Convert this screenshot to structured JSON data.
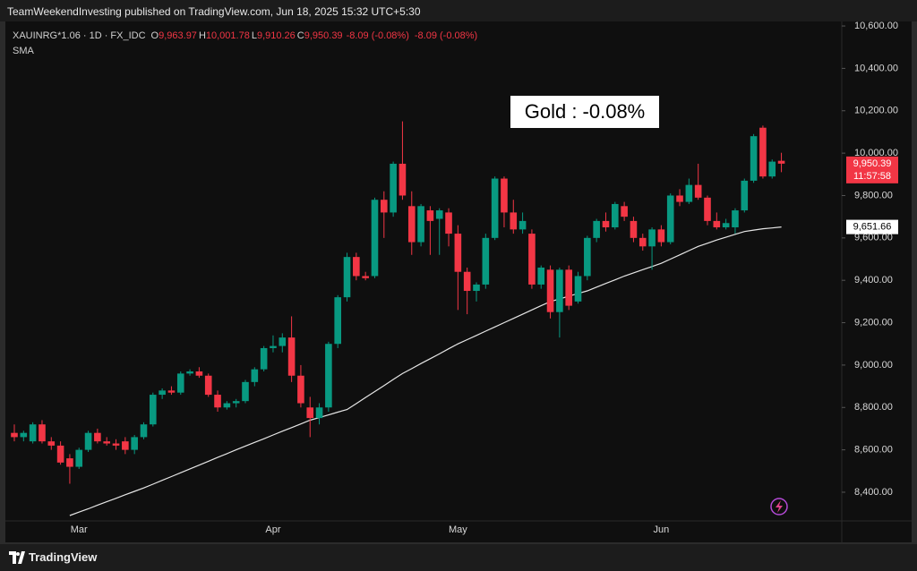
{
  "header": {
    "publisher": "TeamWeekendInvesting published on TradingView.com, Jun 18, 2025 15:32 UTC+5:30"
  },
  "legend": {
    "symbol": "XAUINRG*1.06 · 1D · FX_IDC",
    "items": [
      {
        "key": "O",
        "value": "9,963.97"
      },
      {
        "key": "H",
        "value": "10,001.78"
      },
      {
        "key": "L",
        "value": "9,910.26"
      },
      {
        "key": "C",
        "value": "9,950.39"
      }
    ],
    "change": "-8.09 (-0.08%)",
    "change_repeat": "-8.09 (-0.08%)"
  },
  "footer": {
    "brand": "TradingView"
  },
  "chart_data": {
    "type": "candlestick",
    "annotation": "Gold : -0.08%",
    "up_color": "#089981",
    "down_color": "#f23645",
    "categories": [
      null,
      null,
      null,
      null,
      null,
      null,
      null,
      "Mar",
      null,
      null,
      null,
      null,
      null,
      null,
      null,
      null,
      null,
      null,
      null,
      null,
      null,
      null,
      null,
      null,
      null,
      null,
      null,
      null,
      "Apr",
      null,
      null,
      null,
      null,
      null,
      null,
      null,
      null,
      null,
      null,
      null,
      null,
      null,
      null,
      null,
      null,
      null,
      null,
      null,
      "May",
      null,
      null,
      null,
      null,
      null,
      null,
      null,
      null,
      null,
      null,
      null,
      null,
      null,
      null,
      null,
      null,
      null,
      null,
      null,
      null,
      null,
      "Jun",
      null,
      null,
      null,
      null,
      null,
      null,
      null,
      null,
      null,
      null,
      null,
      null,
      null
    ],
    "open": [
      8680,
      8660,
      8640,
      8720,
      8640,
      8620,
      8560,
      8520,
      8600,
      8680,
      8640,
      8630,
      8640,
      8600,
      8660,
      8720,
      8860,
      8880,
      8870,
      8960,
      8970,
      8950,
      8860,
      8800,
      8820,
      8830,
      8920,
      8980,
      9080,
      9090,
      9130,
      8950,
      8800,
      8750,
      8800,
      9100,
      9320,
      9510,
      9420,
      9420,
      9780,
      9720,
      9950,
      9750,
      9580,
      9730,
      9690,
      9720,
      9620,
      9440,
      9350,
      9380,
      9600,
      9880,
      9720,
      9640,
      9620,
      9380,
      9450,
      9250,
      9450,
      9300,
      9420,
      9600,
      9680,
      9650,
      9750,
      9680,
      9600,
      9560,
      9640,
      9580,
      9800,
      9770,
      9850,
      9790,
      9680,
      9650,
      9650,
      9730,
      9870,
      10120,
      9890,
      9963.97
    ],
    "high": [
      8720,
      8690,
      8730,
      8740,
      8660,
      8640,
      8580,
      8610,
      8690,
      8700,
      8660,
      8650,
      8660,
      8670,
      8730,
      8870,
      8890,
      8900,
      8970,
      8980,
      8990,
      8960,
      8880,
      8830,
      8840,
      8930,
      8990,
      9090,
      9140,
      9150,
      9230,
      9000,
      8850,
      8820,
      9110,
      9330,
      9530,
      9530,
      9440,
      9790,
      9820,
      9960,
      10150,
      9820,
      9760,
      9750,
      9740,
      9740,
      9660,
      9460,
      9390,
      9620,
      9890,
      9890,
      9780,
      9720,
      9640,
      9470,
      9470,
      9460,
      9470,
      9440,
      9610,
      9690,
      9720,
      9770,
      9770,
      9700,
      9620,
      9650,
      9660,
      9810,
      9830,
      9880,
      9950,
      9800,
      9720,
      9690,
      9740,
      9880,
      10090,
      10130,
      9970,
      10001.78
    ],
    "low": [
      8640,
      8640,
      8630,
      8630,
      8600,
      8530,
      8440,
      8510,
      8590,
      8630,
      8620,
      8600,
      8580,
      8580,
      8650,
      8710,
      8840,
      8860,
      8860,
      8950,
      8940,
      8850,
      8780,
      8790,
      8800,
      8820,
      8900,
      8970,
      9060,
      9060,
      8920,
      8800,
      8660,
      8720,
      8780,
      9080,
      9300,
      9400,
      9400,
      9410,
      9600,
      9700,
      9780,
      9520,
      9560,
      9520,
      9520,
      9560,
      9260,
      9240,
      9300,
      9360,
      9590,
      9650,
      9620,
      9620,
      9360,
      9360,
      9220,
      9130,
      9260,
      9290,
      9400,
      9580,
      9630,
      9640,
      9680,
      9580,
      9540,
      9450,
      9560,
      9570,
      9750,
      9760,
      9780,
      9660,
      9640,
      9640,
      9620,
      9720,
      9860,
      9880,
      9880,
      9910.26
    ],
    "close": [
      8660,
      8680,
      8720,
      8640,
      8620,
      8540,
      8520,
      8600,
      8680,
      8640,
      8630,
      8620,
      8600,
      8660,
      8720,
      8860,
      8880,
      8870,
      8960,
      8970,
      8950,
      8860,
      8800,
      8820,
      8830,
      8920,
      8980,
      9080,
      9090,
      9130,
      8950,
      8820,
      8750,
      8800,
      9100,
      9320,
      9510,
      9420,
      9410,
      9780,
      9720,
      9950,
      9800,
      9580,
      9750,
      9680,
      9730,
      9620,
      9440,
      9350,
      9380,
      9600,
      9880,
      9720,
      9640,
      9680,
      9380,
      9460,
      9250,
      9450,
      9280,
      9420,
      9600,
      9680,
      9650,
      9760,
      9700,
      9600,
      9560,
      9640,
      9580,
      9800,
      9770,
      9850,
      9790,
      9680,
      9650,
      9670,
      9730,
      9870,
      10080,
      9890,
      9960,
      9950.39
    ],
    "sma": {
      "name": "SMA",
      "color": "#e6e6e6",
      "values": [
        null,
        null,
        null,
        null,
        null,
        null,
        8290,
        8306,
        8322,
        8339,
        8355,
        8371,
        8388,
        8404,
        8420,
        8438,
        8456,
        8474,
        8492,
        8510,
        8528,
        8546,
        8564,
        8582,
        8600,
        8618,
        8635,
        8652,
        8670,
        8688,
        8705,
        8722,
        8740,
        8752,
        8765,
        8778,
        8790,
        8818,
        8847,
        8875,
        8903,
        8932,
        8960,
        8983,
        9007,
        9030,
        9053,
        9077,
        9100,
        9120,
        9140,
        9160,
        9180,
        9200,
        9220,
        9240,
        9260,
        9280,
        9300,
        9312,
        9325,
        9338,
        9350,
        9368,
        9385,
        9402,
        9420,
        9435,
        9450,
        9465,
        9480,
        9500,
        9520,
        9540,
        9560,
        9575,
        9590,
        9603,
        9617,
        9630,
        9637,
        9643,
        9647,
        9651.66
      ]
    },
    "last_price": {
      "value": 9950.39,
      "label": "9,950.39"
    },
    "countdown": "11:57:58",
    "sma_price": {
      "value": 9651.66,
      "label": "9,651.66"
    },
    "ylim": [
      8250,
      10650
    ],
    "yticks": [
      {
        "value": 8400,
        "label": "8,400.00"
      },
      {
        "value": 8600,
        "label": "8,600.00"
      },
      {
        "value": 8800,
        "label": "8,800.00"
      },
      {
        "value": 9000,
        "label": "9,000.00"
      },
      {
        "value": 9200,
        "label": "9,200.00"
      },
      {
        "value": 9400,
        "label": "9,400.00"
      },
      {
        "value": 9600,
        "label": "9,600.00"
      },
      {
        "value": 9800,
        "label": "9,800.00"
      },
      {
        "value": 10000,
        "label": "10,000.00"
      },
      {
        "value": 10200,
        "label": "10,200.00"
      },
      {
        "value": 10400,
        "label": "10,400.00"
      },
      {
        "value": 10600,
        "label": "10,600.00"
      }
    ],
    "grid": false
  }
}
